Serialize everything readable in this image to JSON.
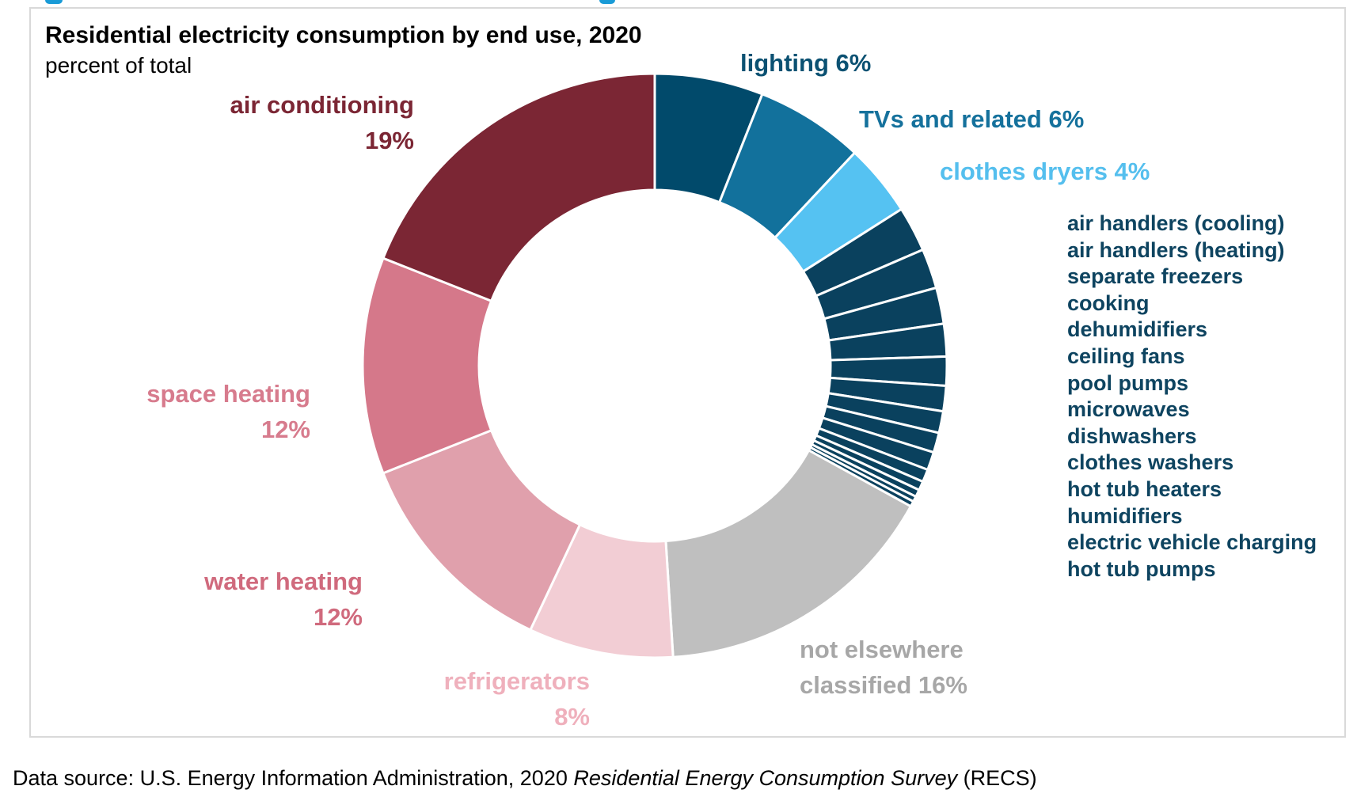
{
  "header": {
    "title": "Residential electricity consumption by end use, 2020",
    "subtitle": "percent of total"
  },
  "source": {
    "prefix": "Data source: U.S. Energy Information Administration, 2020 ",
    "italic": "Residential Energy Consumption Survey",
    "suffix": " (RECS)"
  },
  "artifacts": {
    "top_cropped_text_color": "#1a9bd7"
  },
  "chart_data": {
    "type": "pie",
    "style": "donut",
    "direction": "clockwise-from-top",
    "title": "Residential electricity consumption by end use, 2020",
    "units": "percent of total",
    "unlabeled_small_slices_estimated": true,
    "slices": [
      {
        "label": "lighting",
        "value": 6,
        "color": "#014a6b"
      },
      {
        "label": "TVs and related",
        "value": 6,
        "color": "#12719c"
      },
      {
        "label": "clothes dryers",
        "value": 4,
        "color": "#55c2f2"
      },
      {
        "label": "air handlers (cooling)",
        "value": 2.5,
        "color": "#0a415e",
        "value_estimated": true
      },
      {
        "label": "air handlers (heating)",
        "value": 2.2,
        "color": "#0a415e",
        "value_estimated": true
      },
      {
        "label": "separate freezers",
        "value": 2.0,
        "color": "#0a415e",
        "value_estimated": true
      },
      {
        "label": "cooking",
        "value": 1.8,
        "color": "#0a415e",
        "value_estimated": true
      },
      {
        "label": "dehumidifiers",
        "value": 1.6,
        "color": "#0a415e",
        "value_estimated": true
      },
      {
        "label": "ceiling fans",
        "value": 1.4,
        "color": "#0a415e",
        "value_estimated": true
      },
      {
        "label": "pool pumps",
        "value": 1.2,
        "color": "#0a415e",
        "value_estimated": true
      },
      {
        "label": "microwaves",
        "value": 1.1,
        "color": "#0a415e",
        "value_estimated": true
      },
      {
        "label": "dishwashers",
        "value": 1.0,
        "color": "#0a415e",
        "value_estimated": true
      },
      {
        "label": "clothes washers",
        "value": 0.7,
        "color": "#0a415e",
        "value_estimated": true
      },
      {
        "label": "hot tub heaters",
        "value": 0.5,
        "color": "#0a415e",
        "value_estimated": true
      },
      {
        "label": "humidifiers",
        "value": 0.4,
        "color": "#0a415e",
        "value_estimated": true
      },
      {
        "label": "electric vehicle charging",
        "value": 0.3,
        "color": "#0a415e",
        "value_estimated": true
      },
      {
        "label": "hot tub pumps",
        "value": 0.3,
        "color": "#0a415e",
        "value_estimated": true
      },
      {
        "label": "not elsewhere classified",
        "value": 16,
        "color": "#bfbfbf"
      },
      {
        "label": "refrigerators",
        "value": 8,
        "color": "#f2cdd4"
      },
      {
        "label": "water heating",
        "value": 12,
        "color": "#e0a0ac"
      },
      {
        "label": "space heating",
        "value": 12,
        "color": "#d5788a"
      },
      {
        "label": "air conditioning",
        "value": 19,
        "color": "#7b2634"
      }
    ],
    "small_items_list_range": [
      3,
      17
    ],
    "small_items_text_color": "#0e4460",
    "callouts": [
      {
        "lines": [
          "lighting 6%"
        ],
        "color": "#0b5172"
      },
      {
        "lines": [
          "TVs and related 6%"
        ],
        "color": "#15719c"
      },
      {
        "lines": [
          "clothes dryers 4%"
        ],
        "color": "#55bfee"
      },
      {
        "lines": [
          "not elsewhere",
          "classified 16%"
        ],
        "color": "#a7a7a7"
      },
      {
        "lines": [
          "refrigerators",
          "8%"
        ],
        "color": "#efb0bc"
      },
      {
        "lines": [
          "water heating",
          "12%"
        ],
        "color": "#d06a7d"
      },
      {
        "lines": [
          "space heating",
          "12%"
        ],
        "color": "#d77b8d"
      },
      {
        "lines": [
          "air conditioning",
          "19%"
        ],
        "color": "#7b2634"
      }
    ]
  }
}
